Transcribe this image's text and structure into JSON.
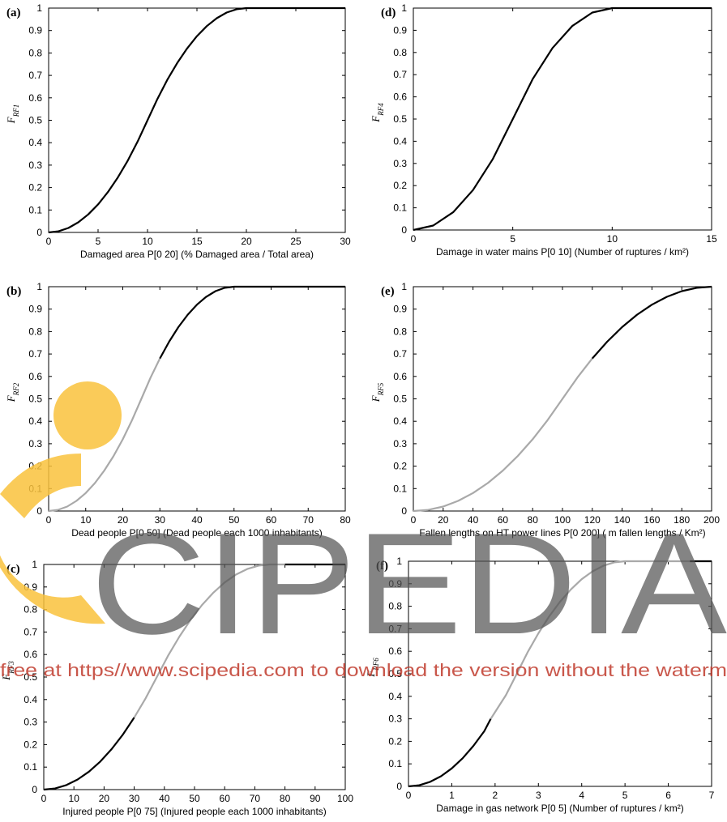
{
  "chart_data": [
    {
      "type": "line",
      "panel": "(a)",
      "ylabel": "F",
      "ylabel_sub": "RF1",
      "xlabel": "Damaged area   P[0 20] (%  Damaged area / Total area)",
      "xlim": [
        0,
        30
      ],
      "ylim": [
        0,
        1
      ],
      "xticks": [
        0,
        5,
        10,
        15,
        20,
        25,
        30
      ],
      "yticks": [
        0,
        0.1,
        0.2,
        0.3,
        0.4,
        0.5,
        0.6,
        0.7,
        0.8,
        0.9,
        1
      ],
      "series": [
        {
          "x": [
            0,
            1,
            2,
            3,
            4,
            5,
            6,
            7,
            8,
            9,
            10,
            11,
            12,
            13,
            14,
            15,
            16,
            17,
            18,
            19,
            20,
            25,
            30
          ],
          "y": [
            0,
            0.005,
            0.02,
            0.045,
            0.08,
            0.125,
            0.18,
            0.245,
            0.32,
            0.405,
            0.5,
            0.595,
            0.68,
            0.755,
            0.82,
            0.875,
            0.92,
            0.955,
            0.98,
            0.995,
            1,
            1,
            1
          ]
        }
      ]
    },
    {
      "type": "line",
      "panel": "(d)",
      "ylabel": "F",
      "ylabel_sub": "RF4",
      "xlabel": "Damage in water mains P[0 10]   (Number of ruptures / km²)",
      "xlim": [
        0,
        15
      ],
      "ylim": [
        0,
        1
      ],
      "xticks": [
        0,
        5,
        10,
        15
      ],
      "yticks": [
        0,
        0.1,
        0.2,
        0.3,
        0.4,
        0.5,
        0.6,
        0.7,
        0.8,
        0.9,
        1
      ],
      "series": [
        {
          "x": [
            0,
            1,
            2,
            3,
            4,
            5,
            6,
            7,
            8,
            9,
            10,
            15
          ],
          "y": [
            0,
            0.02,
            0.08,
            0.18,
            0.32,
            0.5,
            0.68,
            0.82,
            0.92,
            0.98,
            1,
            1
          ]
        }
      ]
    },
    {
      "type": "line",
      "panel": "(b)",
      "ylabel": "F",
      "ylabel_sub": "RF2",
      "xlabel": "Dead people   P[0 50]   (Dead people each 1000 inhabitants)",
      "xlim": [
        0,
        80
      ],
      "ylim": [
        0,
        1
      ],
      "xticks": [
        0,
        10,
        20,
        30,
        40,
        50,
        60,
        70,
        80
      ],
      "yticks": [
        0,
        0.1,
        0.2,
        0.3,
        0.4,
        0.5,
        0.6,
        0.7,
        0.8,
        0.9,
        1
      ],
      "segments": [
        {
          "style": "gray",
          "x": [
            0,
            2.5,
            5,
            7.5,
            10,
            12.5,
            15,
            17.5,
            20,
            22.5,
            25,
            27.5,
            30
          ],
          "y": [
            0,
            0.005,
            0.02,
            0.045,
            0.08,
            0.125,
            0.18,
            0.245,
            0.32,
            0.405,
            0.5,
            0.595,
            0.68
          ]
        },
        {
          "style": "black",
          "x": [
            30,
            32.5,
            35,
            37.5,
            40,
            42.5,
            45,
            47.5,
            50,
            60,
            70,
            80
          ],
          "y": [
            0.68,
            0.755,
            0.82,
            0.875,
            0.92,
            0.955,
            0.98,
            0.995,
            1,
            1,
            1,
            1
          ]
        }
      ]
    },
    {
      "type": "line",
      "panel": "(e)",
      "ylabel": "F",
      "ylabel_sub": "RF5",
      "xlabel": "Fallen lengths on HT power lines  P[0 200]  ( m fallen lengths / Km²)",
      "xlim": [
        0,
        200
      ],
      "ylim": [
        0,
        1
      ],
      "xticks": [
        0,
        20,
        40,
        60,
        80,
        100,
        120,
        140,
        160,
        180,
        200
      ],
      "yticks": [
        0,
        0.1,
        0.2,
        0.3,
        0.4,
        0.5,
        0.6,
        0.7,
        0.8,
        0.9,
        1
      ],
      "segments": [
        {
          "style": "gray",
          "x": [
            0,
            10,
            20,
            30,
            40,
            50,
            60,
            70,
            80,
            90,
            100,
            110,
            120
          ],
          "y": [
            0,
            0.005,
            0.02,
            0.045,
            0.08,
            0.125,
            0.18,
            0.245,
            0.32,
            0.405,
            0.5,
            0.595,
            0.68
          ]
        },
        {
          "style": "black",
          "x": [
            120,
            130,
            140,
            150,
            160,
            170,
            180,
            190,
            200
          ],
          "y": [
            0.68,
            0.755,
            0.82,
            0.875,
            0.92,
            0.955,
            0.98,
            0.995,
            1
          ]
        }
      ]
    },
    {
      "type": "line",
      "panel": "(c)",
      "ylabel": "F",
      "ylabel_sub": "RF3",
      "xlabel": "Injured people   P[0 75] (Injured people each 1000 inhabitants)",
      "xlim": [
        0,
        100
      ],
      "ylim": [
        0,
        1
      ],
      "xticks": [
        0,
        10,
        20,
        30,
        40,
        50,
        60,
        70,
        80,
        90,
        100
      ],
      "yticks": [
        0,
        0.1,
        0.2,
        0.3,
        0.4,
        0.5,
        0.6,
        0.7,
        0.8,
        0.9,
        1
      ],
      "segments": [
        {
          "style": "black",
          "x": [
            0,
            3.75,
            7.5,
            11.25,
            15,
            18.75,
            22.5,
            26.25,
            30
          ],
          "y": [
            0,
            0.005,
            0.02,
            0.045,
            0.08,
            0.125,
            0.18,
            0.245,
            0.32
          ]
        },
        {
          "style": "gray",
          "x": [
            30,
            33.75,
            37.5,
            41.25,
            45,
            48.75,
            52.5,
            56.25,
            60,
            63.75,
            67.5,
            71.25,
            75,
            80
          ],
          "y": [
            0.32,
            0.405,
            0.5,
            0.595,
            0.68,
            0.755,
            0.82,
            0.875,
            0.92,
            0.955,
            0.98,
            0.995,
            1,
            1
          ]
        },
        {
          "style": "black",
          "x": [
            80,
            90,
            100
          ],
          "y": [
            1,
            1,
            1
          ]
        }
      ]
    },
    {
      "type": "line",
      "panel": "(f)",
      "ylabel": "F",
      "ylabel_sub": "RF6",
      "xlabel": "Damage in gas network     P[0 5] (Number of ruptures / km²)",
      "xlim": [
        0,
        7
      ],
      "ylim": [
        0,
        1
      ],
      "xticks": [
        0,
        1,
        2,
        3,
        4,
        5,
        6,
        7
      ],
      "yticks": [
        0,
        0.1,
        0.2,
        0.3,
        0.4,
        0.5,
        0.6,
        0.7,
        0.8,
        0.9,
        1
      ],
      "segments": [
        {
          "style": "black",
          "x": [
            0,
            0.25,
            0.5,
            0.75,
            1,
            1.25,
            1.5,
            1.75,
            1.9
          ],
          "y": [
            0,
            0.005,
            0.02,
            0.045,
            0.08,
            0.125,
            0.18,
            0.245,
            0.3
          ]
        },
        {
          "style": "gray",
          "x": [
            1.9,
            2.25,
            2.5,
            2.75,
            3,
            3.25,
            3.5,
            3.75,
            4,
            4.25,
            4.5,
            4.75,
            5,
            5.5,
            6,
            6.5
          ],
          "y": [
            0.3,
            0.405,
            0.5,
            0.595,
            0.68,
            0.755,
            0.82,
            0.875,
            0.92,
            0.955,
            0.98,
            0.995,
            1,
            1,
            1,
            1
          ]
        },
        {
          "style": "black",
          "x": [
            6.5,
            7
          ],
          "y": [
            1,
            1
          ]
        }
      ]
    }
  ],
  "watermark": {
    "big_text": "CIPEDIA",
    "banner_text": "free at https//www.scipedia.com to download the version without the waterm",
    "logo_color": "#f9c23c",
    "big_text_color": "#555555",
    "banner_color": "#c0392b"
  },
  "colors": {
    "black_line": "#000000",
    "gray_line": "#a9a9a9",
    "axes": "#000000"
  }
}
